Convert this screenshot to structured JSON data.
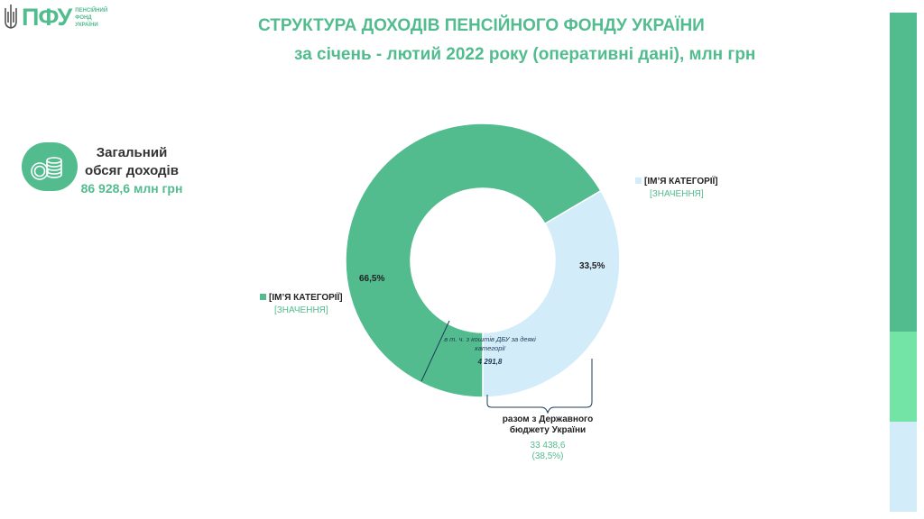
{
  "header": {
    "logo_abbr": "ПФУ",
    "logo_sub": [
      "ПЕНСІЙНИЙ",
      "ФОНД",
      "УКРАЇНИ"
    ],
    "title": "СТРУКТУРА  ДОХОДІВ ПЕНСІЙНОГО ФОНДУ УКРАЇНИ",
    "subtitle": "за січень - лютий 2022 року (оперативні дані), млн грн"
  },
  "total": {
    "icon": "coins-icon",
    "label_line1": "Загальний",
    "label_line2": "обсяг доходів",
    "value": "86 928,6 млн грн"
  },
  "chart_data": {
    "type": "pie",
    "donut": true,
    "series": [
      {
        "label": "[ІМ’Я КАТЕГОРІЇ]",
        "value_label": "[ЗНАЧЕННЯ]",
        "percent": 66.5,
        "percent_label": "66,5%",
        "color": "#52bc8f"
      },
      {
        "label": "[ІМ’Я КАТЕГОРІЇ]",
        "value_label": "[ЗНАЧЕННЯ]",
        "percent": 33.5,
        "percent_label": "33,5%",
        "color": "#d3ecfa"
      }
    ],
    "annotations": {
      "inner_note": "в т. ч. з коштів ДБУ за деякі категорії",
      "inner_value": "4 291,8",
      "inner_percent": 4.94,
      "bracket_label_line1": "разом з Державного",
      "bracket_label_line2": "бюджету України",
      "bracket_value": "33 438,6",
      "bracket_percent_label": "(38,5%)"
    }
  },
  "colors": {
    "accent": "#52bc8f",
    "light": "#d3ecfa",
    "mint": "#73e4a6",
    "note": "#1f3c55"
  }
}
